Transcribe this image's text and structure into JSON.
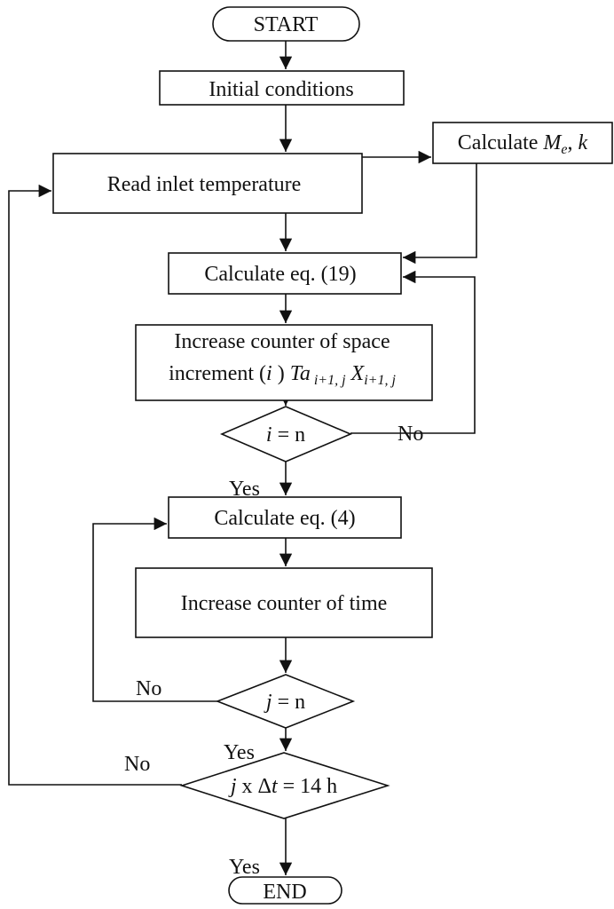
{
  "nodes": [
    {
      "label": [
        "START"
      ]
    },
    {
      "label": [
        "Initial conditions"
      ]
    },
    {
      "label": [
        "Calculate ",
        "M",
        "e",
        ", ",
        "k"
      ]
    },
    {
      "label": [
        "Read inlet temperature"
      ]
    },
    {
      "label": [
        "Calculate eq. (19)"
      ]
    },
    {
      "lines": [
        [
          "Increase counter of space"
        ],
        [
          "increment (",
          "i",
          " ) ",
          "Ta",
          " i+1, j",
          " ",
          "X",
          "i+1, j"
        ]
      ]
    },
    {
      "label": [
        "i",
        " = n"
      ]
    },
    {
      "label": [
        "Calculate eq. (4)"
      ]
    },
    {
      "label": [
        "Increase counter of time"
      ]
    },
    {
      "label": [
        "j",
        " = n"
      ]
    },
    {
      "label": [
        "j",
        " x Δ",
        "t",
        " = 14 h"
      ]
    },
    {
      "label": [
        "END"
      ]
    }
  ],
  "edge_labels": [
    "No",
    "Yes",
    "No",
    "Yes",
    "No",
    "Yes"
  ]
}
